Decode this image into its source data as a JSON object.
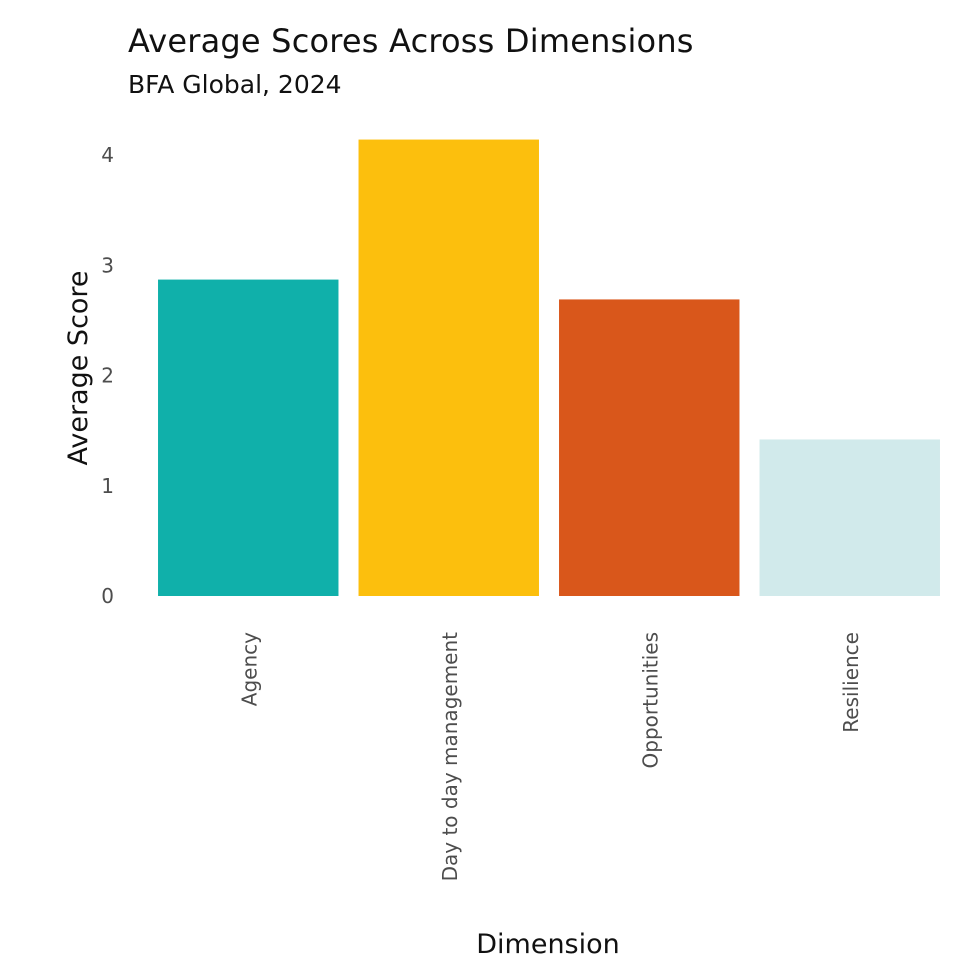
{
  "chart_data": {
    "type": "bar",
    "title": "Average Scores Across Dimensions",
    "subtitle": "BFA Global, 2024",
    "xlabel": "Dimension",
    "ylabel": "Average Score",
    "categories": [
      "Agency",
      "Day to day management",
      "Opportunities",
      "Resilience"
    ],
    "values": [
      2.87,
      4.14,
      2.69,
      1.42
    ],
    "colors": [
      "#10b0aa",
      "#fcbf0d",
      "#d9571b",
      "#d1eaeb"
    ],
    "ylim": [
      0,
      4.2
    ],
    "yticks": [
      0,
      1,
      2,
      3,
      4
    ],
    "grid": false,
    "legend": "none"
  }
}
